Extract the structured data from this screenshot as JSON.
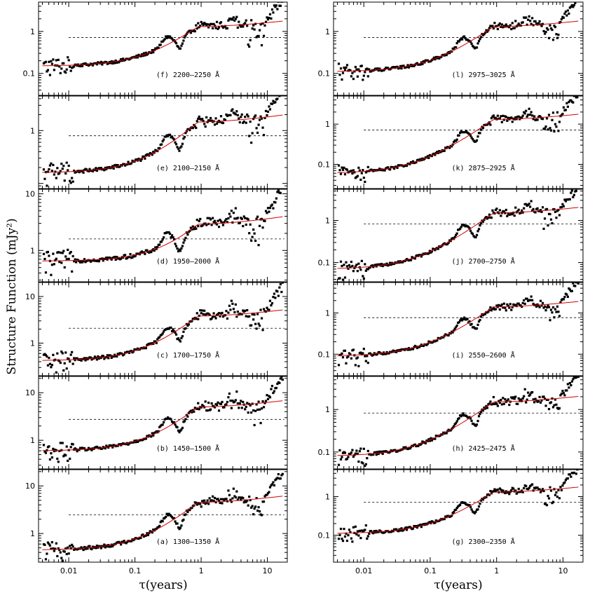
{
  "figure": {
    "ylabel": "Structure Function (mJy²)",
    "xlabel": "τ(years)"
  },
  "chart_data": [
    {
      "type": "scatter",
      "label": "(f) 2200–2250 Å",
      "scale": 1.0,
      "sat": 1.3,
      "level": 0.15,
      "xlim": [
        0.0035,
        20
      ],
      "ylim": [
        0.03,
        5
      ],
      "yticks": [
        0.1,
        1
      ],
      "x_ticks": [
        "0.01",
        "0.1",
        "1",
        "10"
      ]
    },
    {
      "type": "scatter",
      "label": "(e) 2100–2150 Å",
      "scale": 1.05,
      "sat": 1.45,
      "level": 0.16,
      "xlim": [
        0.0035,
        20
      ],
      "ylim": [
        0.08,
        4.5
      ],
      "yticks": [
        1
      ],
      "x_ticks": [
        "0.01",
        "0.1",
        "1",
        "10"
      ]
    },
    {
      "type": "scatter",
      "label": "(d) 1950–2000 Å",
      "scale": 2.4,
      "sat": 2.9,
      "level": 0.65,
      "xlim": [
        0.0035,
        20
      ],
      "ylim": [
        0.28,
        12
      ],
      "yticks": [
        1,
        10
      ],
      "x_ticks": [
        "0.01",
        "0.1",
        "1",
        "10"
      ]
    },
    {
      "type": "scatter",
      "label": "(c) 1700–1750 Å",
      "scale": 4.0,
      "sat": 3.8,
      "level": 0.42,
      "xlim": [
        0.0035,
        20
      ],
      "ylim": [
        0.2,
        20
      ],
      "yticks": [
        1,
        10
      ],
      "x_ticks": [
        "0.01",
        "0.1",
        "1",
        "10"
      ]
    },
    {
      "type": "scatter",
      "label": "(b) 1450–1500 Å",
      "scale": 5.0,
      "sat": 5.0,
      "level": 0.6,
      "xlim": [
        0.0035,
        20
      ],
      "ylim": [
        0.25,
        22
      ],
      "yticks": [
        1,
        10
      ],
      "x_ticks": [
        "0.01",
        "0.1",
        "1",
        "10"
      ]
    },
    {
      "type": "scatter",
      "label": "(a) 1300–1350 Å",
      "scale": 5.5,
      "sat": 4.5,
      "level": 0.45,
      "xlim": [
        0.0035,
        20
      ],
      "ylim": [
        0.25,
        22
      ],
      "yticks": [
        1,
        10
      ],
      "x_ticks": [
        "0.01",
        "0.1",
        "1",
        "10"
      ]
    },
    {
      "type": "scatter",
      "label": "(l) 2975–3025 Å",
      "scale": 1.05,
      "sat": 1.3,
      "level": 0.11,
      "xlim": [
        0.0035,
        20
      ],
      "ylim": [
        0.03,
        5
      ],
      "yticks": [
        0.1,
        1
      ],
      "x_ticks": [
        "0.01",
        "0.1",
        "1",
        "10"
      ]
    },
    {
      "type": "scatter",
      "label": "(k) 2875–2925 Å",
      "scale": 1.05,
      "sat": 1.3,
      "level": 0.06,
      "xlim": [
        0.0035,
        20
      ],
      "ylim": [
        0.025,
        5
      ],
      "yticks": [
        0.1,
        1
      ],
      "x_ticks": [
        "0.01",
        "0.1",
        "1",
        "10"
      ]
    },
    {
      "type": "scatter",
      "label": "(j) 2700–2750 Å",
      "scale": 1.1,
      "sat": 1.5,
      "level": 0.07,
      "xlim": [
        0.0035,
        20
      ],
      "ylim": [
        0.035,
        5.5
      ],
      "yticks": [
        0.1,
        1
      ],
      "x_ticks": [
        "0.01",
        "0.1",
        "1",
        "10"
      ]
    },
    {
      "type": "scatter",
      "label": "(i) 2550–2600 Å",
      "scale": 1.05,
      "sat": 1.4,
      "level": 0.09,
      "xlim": [
        0.0035,
        20
      ],
      "ylim": [
        0.03,
        5.5
      ],
      "yticks": [
        0.1,
        1
      ],
      "x_ticks": [
        "0.01",
        "0.1",
        "1",
        "10"
      ]
    },
    {
      "type": "scatter",
      "label": "(h) 2425–2475 Å",
      "scale": 1.2,
      "sat": 1.5,
      "level": 0.08,
      "xlim": [
        0.0035,
        20
      ],
      "ylim": [
        0.04,
        6
      ],
      "yticks": [
        0.1,
        1
      ],
      "x_ticks": [
        "0.01",
        "0.1",
        "1",
        "10"
      ]
    },
    {
      "type": "scatter",
      "label": "(g) 2300–2350 Å",
      "scale": 0.95,
      "sat": 1.3,
      "level": 0.11,
      "xlim": [
        0.0035,
        20
      ],
      "ylim": [
        0.02,
        5
      ],
      "yticks": [
        0.1,
        1
      ],
      "x_ticks": [
        "0.01",
        "0.1",
        "1",
        "10"
      ]
    }
  ],
  "colors": {
    "model": "#d40000",
    "points": "#000000",
    "frame": "#000000"
  }
}
